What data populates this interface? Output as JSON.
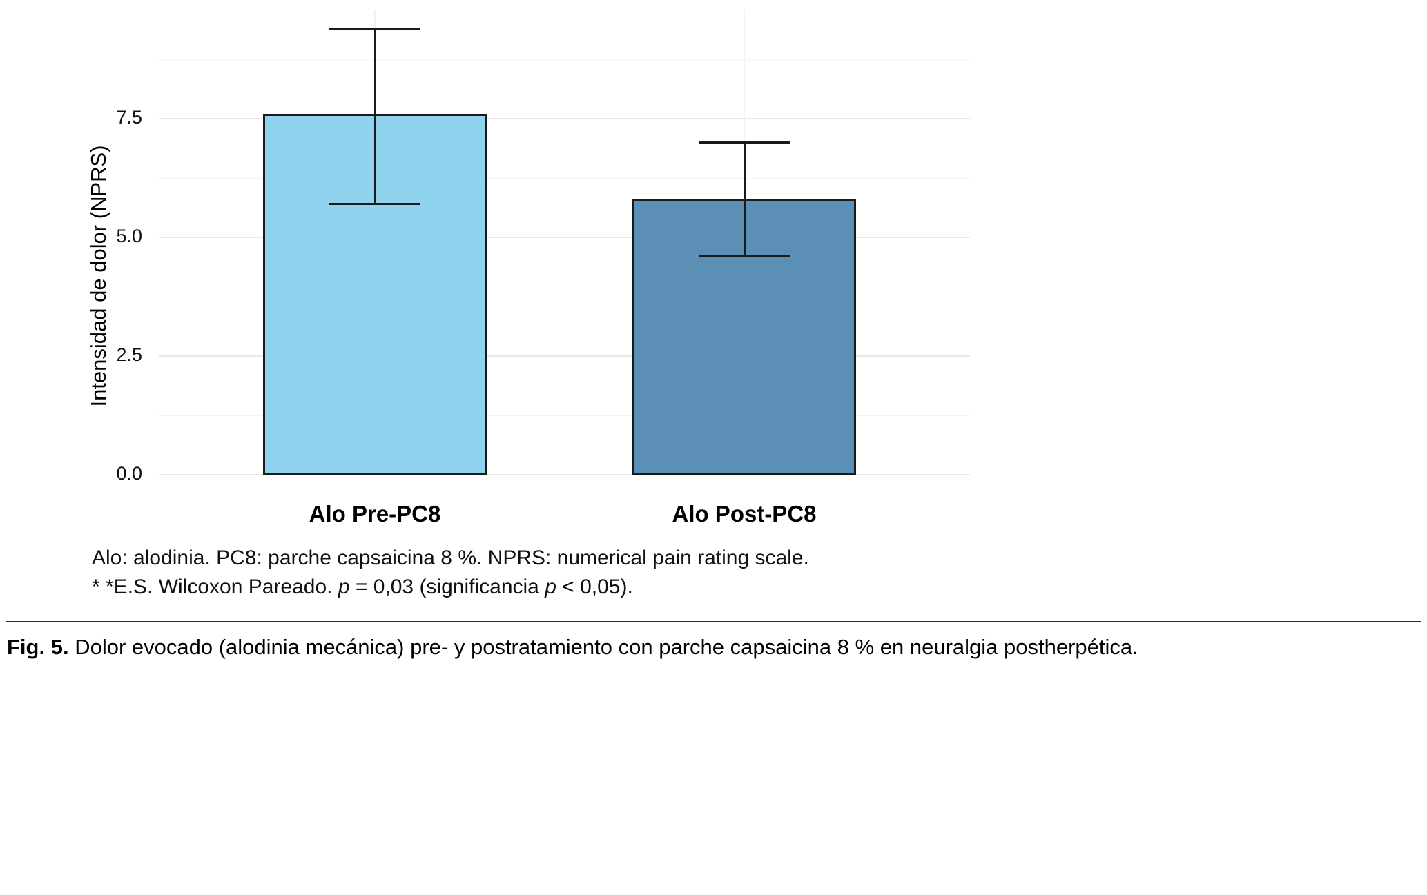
{
  "chart_data": {
    "type": "bar",
    "categories": [
      "Alo Pre-PC8",
      "Alo Post-PC8"
    ],
    "values": [
      7.6,
      5.8
    ],
    "error_low": [
      5.7,
      4.6
    ],
    "error_high": [
      9.4,
      7.0
    ],
    "bar_colors": [
      "#8FD3EE",
      "#5B8FB5"
    ],
    "bar_border_color": "#1a1a1a",
    "title": "",
    "xlabel": "",
    "ylabel": "Intensidad de dolor (NPRS)",
    "ylim": [
      0,
      9.7
    ],
    "yticks": [
      0,
      2.5,
      5,
      7.5
    ],
    "yticks_minor": [
      1.25,
      3.75,
      6.25,
      8.75
    ],
    "ytick_labels": [
      "0.0",
      "2.5",
      "5.0",
      "7.5"
    ],
    "grid": true,
    "legend": "none"
  },
  "footnotes": {
    "line1": "Alo: alodinia. PC8: parche capsaicina 8 %. NPRS: numerical pain rating scale.",
    "line2": [
      {
        "text": "* *E.S. Wilcoxon Pareado. ",
        "italic": false
      },
      {
        "text": "p",
        "italic": true
      },
      {
        "text": " = 0,03 (significancia ",
        "italic": false
      },
      {
        "text": "p",
        "italic": true
      },
      {
        "text": " < 0,05).",
        "italic": false
      }
    ]
  },
  "caption": {
    "label": "Fig. 5.",
    "text": " Dolor evocado (alodinia mecánica)  pre- y postratamiento con parche capsaicina 8 % en neuralgia postherpética."
  }
}
